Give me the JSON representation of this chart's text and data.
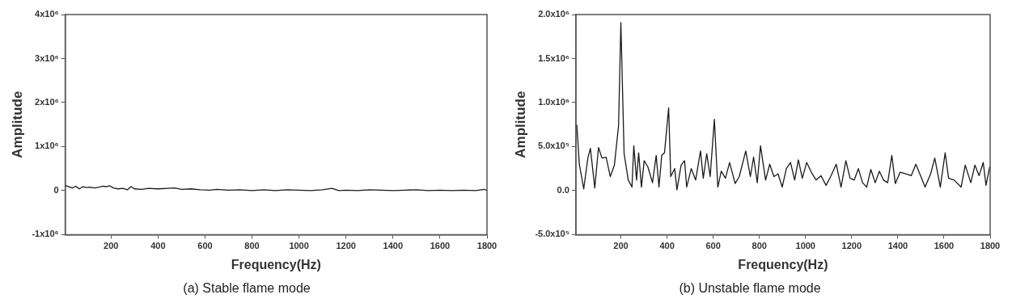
{
  "chart_data": [
    {
      "type": "line",
      "title": "(a) Stable flame mode",
      "xlabel": "Frequency(Hz)",
      "ylabel": "Amplitude",
      "grid": false,
      "legend": false,
      "marker": "none",
      "line_style": "solid",
      "xlim": [
        5,
        1800
      ],
      "xticks": [
        200,
        400,
        600,
        800,
        1000,
        1200,
        1400,
        1600,
        1800
      ],
      "ylim": [
        -1000000,
        4000000
      ],
      "yticks": [
        {
          "value": -1000000,
          "label": "-1x10⁶"
        },
        {
          "value": 0,
          "label": "0"
        },
        {
          "value": 1000000,
          "label": "1x10⁶"
        },
        {
          "value": 2000000,
          "label": "2x10⁶"
        },
        {
          "value": 3000000,
          "label": "3x10⁶"
        },
        {
          "value": 4000000,
          "label": "4x10⁶"
        }
      ],
      "x": [
        5,
        20,
        35,
        50,
        65,
        80,
        95,
        110,
        130,
        150,
        165,
        180,
        195,
        210,
        230,
        250,
        270,
        285,
        300,
        330,
        360,
        400,
        440,
        470,
        500,
        540,
        580,
        620,
        650,
        700,
        750,
        800,
        850,
        900,
        950,
        1000,
        1050,
        1100,
        1140,
        1170,
        1200,
        1250,
        1300,
        1350,
        1400,
        1450,
        1500,
        1550,
        1600,
        1650,
        1700,
        1750,
        1790,
        1800
      ],
      "series": [
        {
          "color": "#1a1a1a",
          "values": [
            120000,
            90000,
            60000,
            100000,
            40000,
            90000,
            70000,
            80000,
            60000,
            80000,
            100000,
            90000,
            110000,
            60000,
            40000,
            50000,
            20000,
            90000,
            40000,
            30000,
            50000,
            40000,
            50000,
            60000,
            30000,
            40000,
            20000,
            10000,
            30000,
            10000,
            20000,
            0,
            20000,
            0,
            20000,
            10000,
            0,
            20000,
            50000,
            0,
            10000,
            0,
            20000,
            10000,
            0,
            10000,
            20000,
            0,
            10000,
            0,
            10000,
            0,
            30000,
            0
          ]
        }
      ]
    },
    {
      "type": "line",
      "title": "(b) Unstable flame mode",
      "xlabel": "Frequency(Hz)",
      "ylabel": "Amplitude",
      "grid": false,
      "legend": false,
      "marker": "none",
      "line_style": "solid",
      "xlim": [
        5,
        1800
      ],
      "xticks": [
        200,
        400,
        600,
        800,
        1000,
        1200,
        1400,
        1600,
        1800
      ],
      "ylim": [
        -500000,
        2000000
      ],
      "yticks": [
        {
          "value": -500000,
          "label": "-5.0x10⁵"
        },
        {
          "value": 0,
          "label": "0.0"
        },
        {
          "value": 500000,
          "label": "5.0x10⁵"
        },
        {
          "value": 1000000,
          "label": "1.0x10⁶"
        },
        {
          "value": 1500000,
          "label": "1.5x10⁶"
        },
        {
          "value": 2000000,
          "label": "2.0x10⁶"
        }
      ],
      "x": [
        9,
        20,
        39,
        57,
        68,
        87,
        103,
        118,
        136,
        154,
        172,
        190,
        200,
        214,
        232,
        248,
        256,
        268,
        277,
        289,
        301,
        317,
        337,
        353,
        365,
        377,
        389,
        407,
        416,
        433,
        443,
        461,
        476,
        485,
        505,
        524,
        545,
        557,
        572,
        587,
        605,
        620,
        635,
        653,
        671,
        695,
        713,
        741,
        761,
        775,
        791,
        805,
        827,
        845,
        863,
        881,
        899,
        917,
        935,
        953,
        969,
        986,
        1005,
        1025,
        1046,
        1067,
        1089,
        1109,
        1133,
        1154,
        1175,
        1193,
        1211,
        1229,
        1247,
        1265,
        1283,
        1302,
        1320,
        1338,
        1356,
        1374,
        1389,
        1410,
        1434,
        1458,
        1478,
        1500,
        1518,
        1542,
        1560,
        1584,
        1605,
        1620,
        1644,
        1674,
        1692,
        1716,
        1734,
        1752,
        1770,
        1782,
        1798
      ],
      "series": [
        {
          "color": "#1a1a1a",
          "values": [
            750000,
            300000,
            20000,
            370000,
            480000,
            30000,
            490000,
            370000,
            380000,
            160000,
            290000,
            740000,
            1910000,
            420000,
            120000,
            40000,
            510000,
            120000,
            430000,
            40000,
            340000,
            270000,
            90000,
            400000,
            40000,
            400000,
            430000,
            940000,
            160000,
            250000,
            10000,
            290000,
            340000,
            40000,
            250000,
            120000,
            450000,
            140000,
            420000,
            160000,
            810000,
            40000,
            220000,
            140000,
            320000,
            80000,
            160000,
            450000,
            160000,
            380000,
            90000,
            510000,
            120000,
            300000,
            160000,
            190000,
            40000,
            250000,
            320000,
            120000,
            350000,
            140000,
            320000,
            210000,
            120000,
            170000,
            60000,
            160000,
            300000,
            40000,
            340000,
            140000,
            120000,
            250000,
            90000,
            40000,
            240000,
            90000,
            220000,
            120000,
            90000,
            400000,
            80000,
            210000,
            190000,
            170000,
            300000,
            160000,
            40000,
            190000,
            370000,
            40000,
            430000,
            140000,
            120000,
            40000,
            290000,
            90000,
            290000,
            170000,
            320000,
            60000,
            270000
          ]
        }
      ]
    }
  ]
}
